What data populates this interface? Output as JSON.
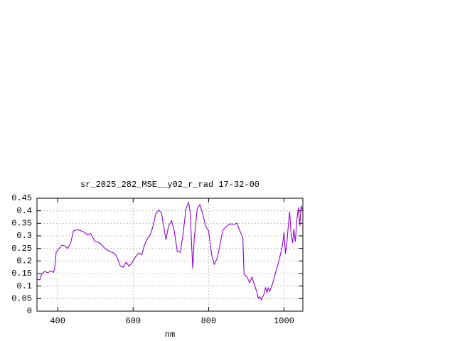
{
  "chart_data": {
    "type": "line",
    "title": "sr_2025_282_MSE__y02_r_rad 17-32-00",
    "x_label": "nm",
    "x": [
      345,
      353,
      358,
      366,
      374,
      381,
      389,
      392,
      396,
      404,
      411,
      419,
      426,
      434,
      442,
      453,
      468,
      479,
      487,
      498,
      513,
      525,
      532,
      543,
      551,
      558,
      566,
      574,
      581,
      589,
      596,
      604,
      615,
      623,
      630,
      638,
      645,
      653,
      660,
      668,
      675,
      683,
      687,
      694,
      702,
      709,
      717,
      725,
      732,
      740,
      747,
      751,
      758,
      762,
      770,
      777,
      785,
      792,
      800,
      808,
      815,
      823,
      830,
      838,
      845,
      853,
      860,
      868,
      875,
      883,
      891,
      894,
      902,
      909,
      915,
      921,
      928,
      932,
      936,
      940,
      947,
      951,
      955,
      958,
      962,
      970,
      977,
      985,
      992,
      996,
      1000,
      1004,
      1008,
      1011,
      1015,
      1019,
      1023,
      1026,
      1030,
      1034,
      1038,
      1042,
      1045,
      1049
    ],
    "series": [
      {
        "color": "#9400d3",
        "values": [
          0.127,
          0.125,
          0.15,
          0.158,
          0.153,
          0.16,
          0.155,
          0.17,
          0.235,
          0.25,
          0.263,
          0.26,
          0.25,
          0.27,
          0.32,
          0.325,
          0.317,
          0.303,
          0.31,
          0.28,
          0.27,
          0.25,
          0.243,
          0.235,
          0.23,
          0.212,
          0.18,
          0.175,
          0.195,
          0.18,
          0.19,
          0.212,
          0.232,
          0.225,
          0.263,
          0.29,
          0.303,
          0.34,
          0.388,
          0.402,
          0.393,
          0.32,
          0.285,
          0.34,
          0.36,
          0.32,
          0.238,
          0.235,
          0.303,
          0.408,
          0.433,
          0.396,
          0.17,
          0.29,
          0.408,
          0.425,
          0.385,
          0.34,
          0.32,
          0.226,
          0.187,
          0.212,
          0.263,
          0.323,
          0.334,
          0.345,
          0.348,
          0.345,
          0.351,
          0.32,
          0.292,
          0.147,
          0.136,
          0.113,
          0.136,
          0.108,
          0.076,
          0.051,
          0.057,
          0.045,
          0.068,
          0.093,
          0.074,
          0.093,
          0.079,
          0.11,
          0.15,
          0.192,
          0.235,
          0.263,
          0.314,
          0.229,
          0.277,
          0.334,
          0.396,
          0.306,
          0.272,
          0.328,
          0.277,
          0.362,
          0.413,
          0.34,
          0.419,
          0.405
        ]
      }
    ],
    "xlim": [
      345,
      1050
    ],
    "ylim": [
      0,
      0.45
    ],
    "xticks": [
      400,
      600,
      800,
      1000
    ],
    "yticks": [
      0,
      0.05,
      0.1,
      0.15,
      0.2,
      0.25,
      0.3,
      0.35,
      0.4,
      0.45
    ],
    "grid": true
  }
}
